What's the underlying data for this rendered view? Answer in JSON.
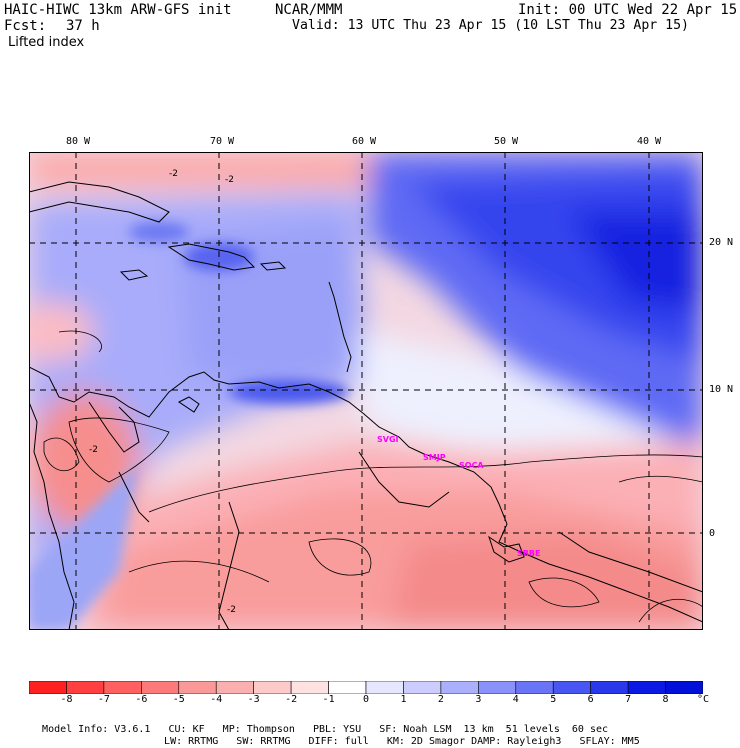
{
  "header": {
    "model_title": "HAIC-HIWC 13km ARW-GFS init",
    "agency": "NCAR/MMM",
    "init": "Init: 00 UTC Wed 22 Apr 15",
    "fcst_label": "Fcst:",
    "fcst_value": "37 h",
    "valid": "Valid: 13 UTC Thu 23 Apr 15 (10 LST Thu 23 Apr 15)",
    "field": "Lifted index"
  },
  "map": {
    "lon_labels": [
      "80 W",
      "70 W",
      "60 W",
      "50 W",
      "40 W"
    ],
    "lat_labels": [
      "20 N",
      "10 N",
      "0"
    ],
    "stations": [
      "SVGI",
      "SMJP",
      "SOCA",
      "SBBE"
    ],
    "contour_labels": [
      "-2",
      "-2",
      "-2",
      "-2"
    ]
  },
  "colorbar": {
    "labels": [
      "-8",
      "-7",
      "-6",
      "-5",
      "-4",
      "-3",
      "-2",
      "-1",
      "0",
      "1",
      "2",
      "3",
      "4",
      "5",
      "6",
      "7",
      "8"
    ],
    "unit": "°C",
    "colors": [
      "#ff2020",
      "#ff4040",
      "#ff6060",
      "#fd7a7a",
      "#fb9898",
      "#fbb0b0",
      "#fdcaca",
      "#fee2e2",
      "#ffffff",
      "#e6e6fe",
      "#ccccfe",
      "#aab0fc",
      "#8a92fa",
      "#6a74f6",
      "#4a56f2",
      "#2a38ec",
      "#0a1ae4",
      "#0010d8"
    ]
  },
  "footer": {
    "line1": [
      "Model Info: V3.6.1",
      "CU: KF",
      "MP: Thompson",
      "PBL: YSU",
      "SF: Noah LSM",
      "13 km",
      "51 levels",
      "60 sec"
    ],
    "line2": [
      "LW: RRTMG",
      "SW: RRTMG",
      "DIFF: full",
      "KM: 2D Smagor",
      "DAMP: Rayleigh3",
      "SFLAY: MM5"
    ]
  }
}
